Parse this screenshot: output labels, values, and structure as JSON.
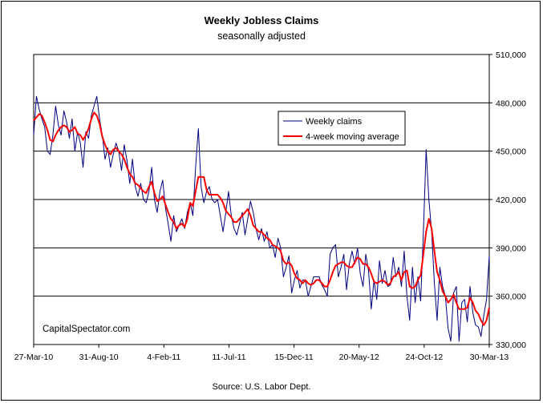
{
  "chart_data": {
    "type": "line",
    "title": "Weekly Jobless Claims",
    "subtitle": "seasonally adjusted",
    "source": "Source: U.S. Labor Dept.",
    "watermark": "CapitalSpectator.com",
    "x_tick_labels": [
      "27-Mar-10",
      "31-Aug-10",
      "4-Feb-11",
      "11-Jul-11",
      "15-Dec-11",
      "20-May-12",
      "24-Oct-12",
      "30-Mar-13"
    ],
    "x_range": [
      "2010-03-27",
      "2013-03-30"
    ],
    "ylim": [
      330000,
      510000
    ],
    "y_tick_labels": [
      "330,000",
      "360,000",
      "390,000",
      "420,000",
      "450,000",
      "480,000",
      "510,000"
    ],
    "y_axis_position": "right",
    "grid": "horizontal",
    "legend_position": "upper-middle-right",
    "series": [
      {
        "name": "Weekly claims",
        "color": "#000080",
        "values": [
          460000,
          484000,
          476000,
          470000,
          465000,
          450000,
          448000,
          460000,
          478000,
          466000,
          460000,
          475000,
          468000,
          458000,
          470000,
          450000,
          462000,
          455000,
          440000,
          462000,
          458000,
          472000,
          478000,
          484000,
          470000,
          460000,
          445000,
          452000,
          440000,
          448000,
          455000,
          450000,
          438000,
          454000,
          444000,
          430000,
          445000,
          428000,
          422000,
          430000,
          420000,
          418000,
          425000,
          440000,
          420000,
          412000,
          425000,
          432000,
          415000,
          405000,
          394000,
          410000,
          400000,
          404000,
          408000,
          402000,
          412000,
          418000,
          410000,
          440000,
          464000,
          428000,
          418000,
          425000,
          428000,
          420000,
          418000,
          420000,
          410000,
          400000,
          412000,
          425000,
          410000,
          402000,
          398000,
          405000,
          412000,
          398000,
          408000,
          419000,
          412000,
          402000,
          395000,
          402000,
          394000,
          400000,
          390000,
          392000,
          384000,
          396000,
          390000,
          372000,
          378000,
          385000,
          362000,
          370000,
          376000,
          365000,
          370000,
          370000,
          360000,
          366000,
          372000,
          372000,
          372000,
          367000,
          364000,
          360000,
          386000,
          390000,
          392000,
          372000,
          378000,
          386000,
          364000,
          380000,
          388000,
          380000,
          390000,
          374000,
          366000,
          386000,
          376000,
          352000,
          370000,
          358000,
          382000,
          368000,
          376000,
          366000,
          367000,
          384000,
          372000,
          378000,
          366000,
          388000,
          360000,
          345000,
          378000,
          356000,
          372000,
          357000,
          400000,
          451000,
          420000,
          400000,
          368000,
          345000,
          378000,
          366000,
          360000,
          340000,
          332000,
          362000,
          366000,
          332000,
          356000,
          358000,
          344000,
          366000,
          350000,
          342000,
          341000,
          335000,
          348000,
          358000,
          385000
        ],
        "label": "Weekly claims"
      },
      {
        "name": "4-week moving average",
        "color": "#ff0000",
        "values": [
          469000,
          471000,
          473000,
          472000,
          468000,
          463000,
          457000,
          456000,
          460000,
          463000,
          465000,
          466000,
          465000,
          462000,
          463000,
          465000,
          461000,
          460000,
          457000,
          460000,
          464000,
          470000,
          474000,
          472000,
          467000,
          459000,
          454000,
          450000,
          448000,
          451000,
          452000,
          450000,
          448000,
          445000,
          440000,
          436000,
          434000,
          430000,
          429000,
          427000,
          425000,
          424000,
          428000,
          431000,
          424000,
          419000,
          420000,
          422000,
          417000,
          412000,
          408000,
          406000,
          402000,
          404000,
          405000,
          403000,
          408000,
          418000,
          416000,
          425000,
          434000,
          434000,
          434000,
          426000,
          423000,
          423000,
          423000,
          423000,
          421000,
          418000,
          413000,
          411000,
          409000,
          406000,
          406000,
          408000,
          410000,
          412000,
          414000,
          410000,
          404000,
          402000,
          400000,
          400000,
          398000,
          396000,
          395000,
          392000,
          391000,
          390000,
          388000,
          382000,
          380000,
          381000,
          379000,
          374000,
          371000,
          370000,
          368000,
          370000,
          368000,
          367000,
          368000,
          370000,
          370000,
          368000,
          366000,
          366000,
          370000,
          375000,
          379000,
          380000,
          381000,
          381000,
          379000,
          378000,
          378000,
          381000,
          384000,
          383000,
          380000,
          380000,
          378000,
          374000,
          369000,
          368000,
          369000,
          370000,
          369000,
          367000,
          368000,
          372000,
          373000,
          375000,
          370000,
          375000,
          376000,
          366000,
          365000,
          366000,
          370000,
          373000,
          386000,
          400000,
          408000,
          402000,
          388000,
          375000,
          370000,
          363000,
          360000,
          356000,
          358000,
          361000,
          356000,
          352000,
          352000,
          352000,
          353000,
          359000,
          356000,
          351000,
          349000,
          345000,
          342000,
          345000,
          353000
        ],
        "label": "4-week moving average"
      }
    ]
  }
}
